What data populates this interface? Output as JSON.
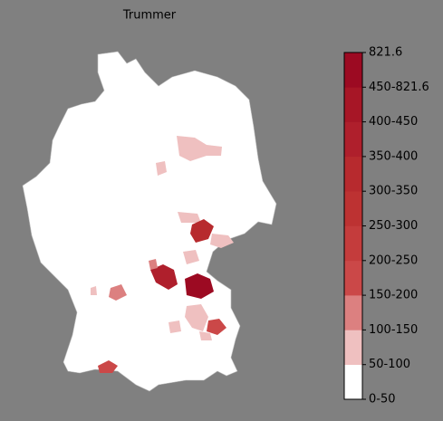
{
  "title": "Trummer",
  "colorbar": {
    "labels": [
      "0-50",
      "50-100",
      "100-150",
      "150-200",
      "200-250",
      "250-300",
      "300-350",
      "350-400",
      "400-450",
      "450-821.6",
      "821.6"
    ],
    "colors": [
      "#ffffff",
      "#efc0c0",
      "#dc8080",
      "#cb4848",
      "#c43c3c",
      "#bd3232",
      "#b72a2e",
      "#af1f2c",
      "#a71626",
      "#9c0a22"
    ]
  }
}
